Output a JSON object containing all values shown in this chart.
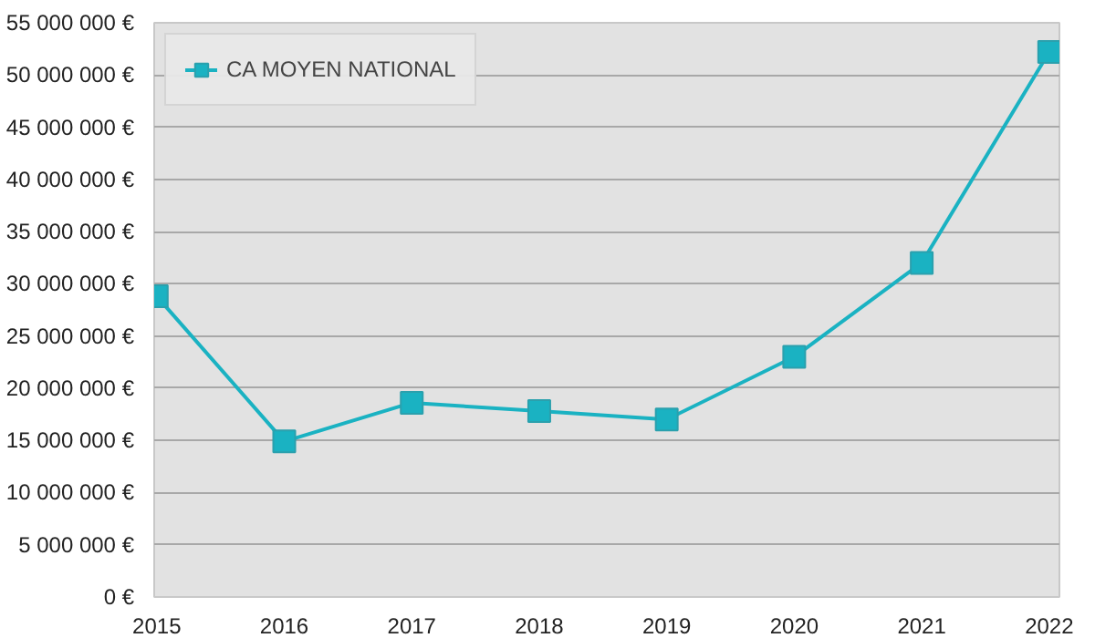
{
  "chart_data": {
    "type": "line",
    "categories": [
      "2015",
      "2016",
      "2017",
      "2018",
      "2019",
      "2020",
      "2021",
      "2022"
    ],
    "series": [
      {
        "name": "CA MOYEN NATIONAL",
        "color": "#1ab2c2",
        "values": [
          28800000,
          14900000,
          18600000,
          17800000,
          17000000,
          23000000,
          32000000,
          52200000
        ]
      }
    ],
    "ylim": [
      0,
      55000000
    ],
    "yticks": [
      {
        "value": 0,
        "label": "0 €"
      },
      {
        "value": 5000000,
        "label": "5 000 000 €"
      },
      {
        "value": 10000000,
        "label": "10 000 000 €"
      },
      {
        "value": 15000000,
        "label": "15 000 000 €"
      },
      {
        "value": 20000000,
        "label": "20 000 000 €"
      },
      {
        "value": 25000000,
        "label": "25 000 000 €"
      },
      {
        "value": 30000000,
        "label": "30 000 000 €"
      },
      {
        "value": 35000000,
        "label": "35 000 000 €"
      },
      {
        "value": 40000000,
        "label": "40 000 000 €"
      },
      {
        "value": 45000000,
        "label": "45 000 000 €"
      },
      {
        "value": 50000000,
        "label": "50 000 000 €"
      },
      {
        "value": 55000000,
        "label": "55 000 000 €"
      }
    ],
    "grid": "y",
    "legend": "top left",
    "marker": "square",
    "line_style": "solid"
  }
}
